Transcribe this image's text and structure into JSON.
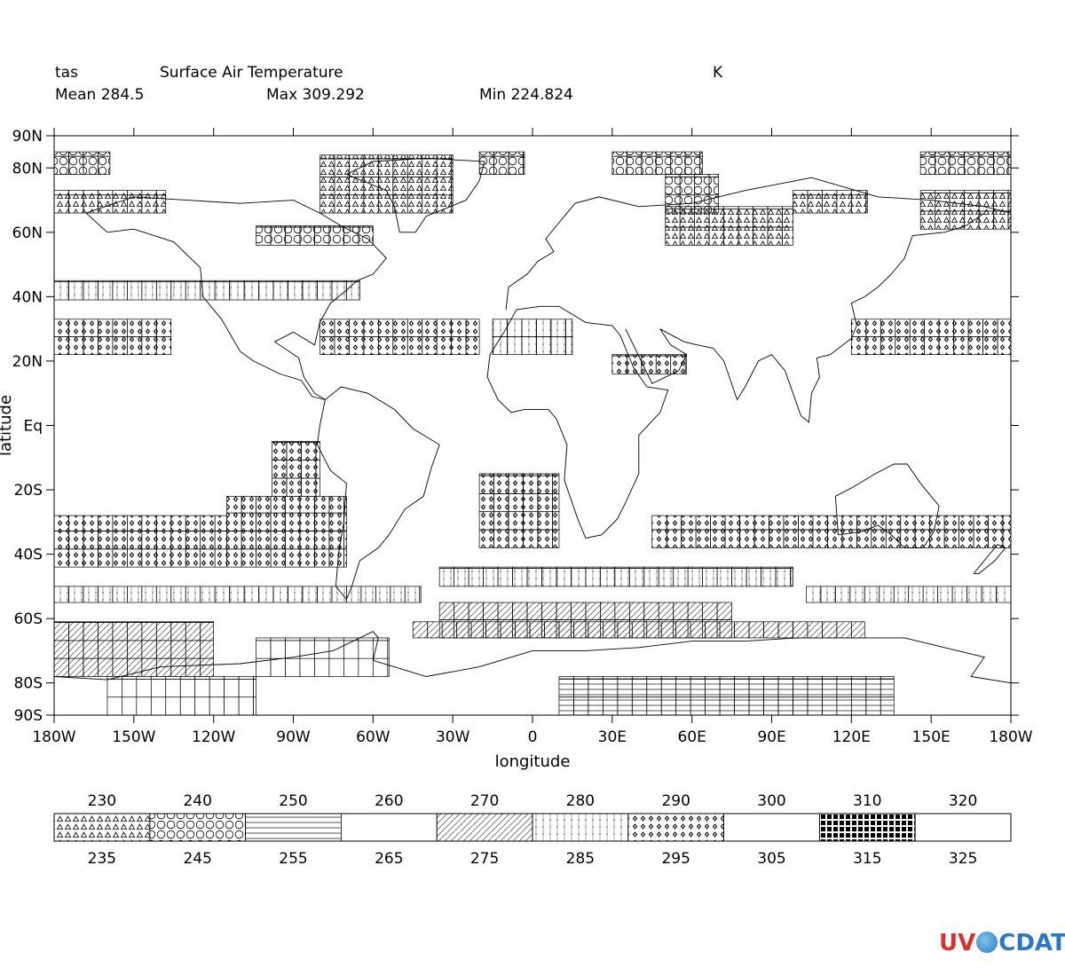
{
  "header": {
    "variable": "tas",
    "long_name": "Surface Air Temperature",
    "units": "K",
    "mean": "Mean 284.5",
    "max": "Max 309.292",
    "min": "Min 224.824"
  },
  "chart_data": {
    "type": "heatmap",
    "title": "Surface Air Temperature",
    "xlabel": "longitude",
    "ylabel": "latitude",
    "xlim": [
      -180,
      180
    ],
    "ylim": [
      -90,
      90
    ],
    "x_ticks": [
      {
        "value": -180,
        "label": "180W"
      },
      {
        "value": -150,
        "label": "150W"
      },
      {
        "value": -120,
        "label": "120W"
      },
      {
        "value": -90,
        "label": "90W"
      },
      {
        "value": -60,
        "label": "60W"
      },
      {
        "value": -30,
        "label": "30W"
      },
      {
        "value": 0,
        "label": "0"
      },
      {
        "value": 30,
        "label": "30E"
      },
      {
        "value": 60,
        "label": "60E"
      },
      {
        "value": 90,
        "label": "90E"
      },
      {
        "value": 120,
        "label": "120E"
      },
      {
        "value": 150,
        "label": "150E"
      },
      {
        "value": 180,
        "label": "180W"
      }
    ],
    "y_ticks": [
      {
        "value": 90,
        "label": "90N"
      },
      {
        "value": 80,
        "label": "80N"
      },
      {
        "value": 60,
        "label": "60N"
      },
      {
        "value": 40,
        "label": "40N"
      },
      {
        "value": 20,
        "label": "20N"
      },
      {
        "value": 0,
        "label": "Eq"
      },
      {
        "value": -20,
        "label": "20S"
      },
      {
        "value": -40,
        "label": "40S"
      },
      {
        "value": -60,
        "label": "60S"
      },
      {
        "value": -80,
        "label": "80S"
      },
      {
        "value": -90,
        "label": "90S"
      }
    ],
    "legend": {
      "position": "bottom",
      "levels": [
        230,
        235,
        240,
        245,
        250,
        255,
        260,
        265,
        270,
        275,
        280,
        285,
        290,
        295,
        300,
        305,
        310,
        315,
        320,
        325
      ],
      "top_labels": [
        "230",
        "240",
        "250",
        "260",
        "270",
        "280",
        "290",
        "300",
        "310",
        "320"
      ],
      "bottom_labels": [
        "235",
        "245",
        "255",
        "265",
        "275",
        "285",
        "295",
        "305",
        "315",
        "325"
      ],
      "patterns": [
        "triangles",
        "circles",
        "hlines",
        "blank",
        "diagonal",
        "grid",
        "diamonds",
        "blank",
        "squares",
        "blank"
      ]
    },
    "cell_size_deg": [
      5.5,
      5.6
    ],
    "regions": [
      {
        "lon": [
          -180,
          -159
        ],
        "lat": [
          78,
          85
        ],
        "pattern": "circles"
      },
      {
        "lon": [
          -180,
          -138
        ],
        "lat": [
          66,
          73
        ],
        "pattern": "triangles"
      },
      {
        "lon": [
          -104,
          -60
        ],
        "lat": [
          56,
          62
        ],
        "pattern": "circles"
      },
      {
        "lon": [
          -80,
          -30
        ],
        "lat": [
          66,
          84
        ],
        "pattern": "triangles"
      },
      {
        "lon": [
          -20,
          -3
        ],
        "lat": [
          78,
          85
        ],
        "pattern": "circles"
      },
      {
        "lon": [
          30,
          64
        ],
        "lat": [
          78,
          85
        ],
        "pattern": "circles"
      },
      {
        "lon": [
          50,
          70
        ],
        "lat": [
          66,
          78
        ],
        "pattern": "circles"
      },
      {
        "lon": [
          50,
          98
        ],
        "lat": [
          56,
          68
        ],
        "pattern": "triangles"
      },
      {
        "lon": [
          98,
          126
        ],
        "lat": [
          66,
          73
        ],
        "pattern": "triangles"
      },
      {
        "lon": [
          146,
          180
        ],
        "lat": [
          78,
          85
        ],
        "pattern": "circles"
      },
      {
        "lon": [
          146,
          180
        ],
        "lat": [
          61,
          73
        ],
        "pattern": "triangles"
      },
      {
        "lon": [
          -180,
          -65
        ],
        "lat": [
          39,
          45
        ],
        "pattern": "grid"
      },
      {
        "lon": [
          -180,
          -136
        ],
        "lat": [
          22,
          33
        ],
        "pattern": "diamonds"
      },
      {
        "lon": [
          -80,
          -20
        ],
        "lat": [
          22,
          33
        ],
        "pattern": "diamonds"
      },
      {
        "lon": [
          -15,
          15
        ],
        "lat": [
          22,
          33
        ],
        "pattern": "grid"
      },
      {
        "lon": [
          30,
          58
        ],
        "lat": [
          16,
          22
        ],
        "pattern": "diamonds"
      },
      {
        "lon": [
          120,
          180
        ],
        "lat": [
          22,
          33
        ],
        "pattern": "diamonds"
      },
      {
        "lon": [
          -98,
          -80
        ],
        "lat": [
          -22,
          -5
        ],
        "pattern": "diamonds"
      },
      {
        "lon": [
          -115,
          -70
        ],
        "lat": [
          -44,
          -22
        ],
        "pattern": "diamonds"
      },
      {
        "lon": [
          -180,
          -115
        ],
        "lat": [
          -44,
          -28
        ],
        "pattern": "diamonds"
      },
      {
        "lon": [
          -20,
          10
        ],
        "lat": [
          -38,
          -15
        ],
        "pattern": "diamonds"
      },
      {
        "lon": [
          45,
          180
        ],
        "lat": [
          -38,
          -28
        ],
        "pattern": "diamonds"
      },
      {
        "lon": [
          -35,
          98
        ],
        "lat": [
          -50,
          -44
        ],
        "pattern": "grid"
      },
      {
        "lon": [
          -180,
          -42
        ],
        "lat": [
          -55,
          -50
        ],
        "pattern": "grid"
      },
      {
        "lon": [
          103,
          180
        ],
        "lat": [
          -55,
          -50
        ],
        "pattern": "grid"
      },
      {
        "lon": [
          -35,
          75
        ],
        "lat": [
          -66,
          -55
        ],
        "pattern": "diagonal"
      },
      {
        "lon": [
          -180,
          -120
        ],
        "lat": [
          -78,
          -61
        ],
        "pattern": "diagonal"
      },
      {
        "lon": [
          -45,
          125
        ],
        "lat": [
          -66,
          -61
        ],
        "pattern": "diagonal"
      },
      {
        "lon": [
          10,
          136
        ],
        "lat": [
          -90,
          -78
        ],
        "pattern": "hlines"
      },
      {
        "lon": [
          -104,
          -54
        ],
        "lat": [
          -78,
          -66
        ],
        "pattern": "blank"
      },
      {
        "lon": [
          -160,
          -104
        ],
        "lat": [
          -90,
          -78
        ],
        "pattern": "blank"
      }
    ]
  }
}
